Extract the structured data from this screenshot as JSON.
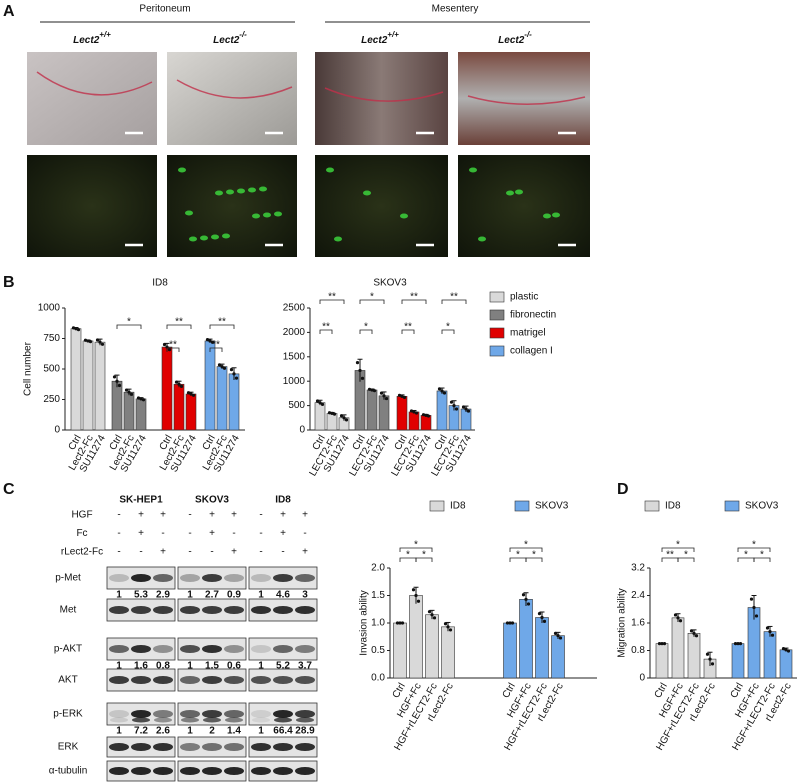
{
  "panel_labels": [
    "A",
    "B",
    "C",
    "D"
  ],
  "panel_a": {
    "sites": [
      "Peritoneum",
      "Mesentery"
    ],
    "genotypes": [
      {
        "gene": "Lect2",
        "genotype": "+/+"
      },
      {
        "gene": "Lect2",
        "genotype": "-/-"
      }
    ]
  },
  "chart_data": [
    {
      "type": "bar",
      "title": "ID8",
      "ylabel": "Cell number",
      "categories": [
        "Ctrl",
        "Lect2-Fc",
        "SU11274"
      ],
      "ylim": [
        0,
        1000
      ],
      "yticks": [
        0,
        250,
        500,
        750,
        1000
      ],
      "series": [
        {
          "color": "#d9d9d9",
          "values": [
            830,
            730,
            720
          ],
          "errors": [
            10,
            8,
            25
          ],
          "significance": []
        },
        {
          "color": "#808080",
          "values": [
            400,
            310,
            255
          ],
          "errors": [
            50,
            25,
            10
          ],
          "significance": [
            null,
            "*"
          ]
        },
        {
          "color": "#e00000",
          "values": [
            680,
            375,
            295
          ],
          "errors": [
            30,
            25,
            15
          ],
          "significance": [
            "**",
            "**"
          ]
        },
        {
          "color": "#6fa8e8",
          "values": [
            730,
            520,
            460
          ],
          "errors": [
            15,
            20,
            50
          ],
          "significance": [
            "**",
            "**"
          ]
        }
      ]
    },
    {
      "type": "bar",
      "title": "SKOV3",
      "categories": [
        "Ctrl",
        "LECT2-Fc",
        "SU11274"
      ],
      "ylim": [
        0,
        2500
      ],
      "yticks": [
        0,
        500,
        1000,
        1500,
        2000,
        2500
      ],
      "legend": "right",
      "series": [
        {
          "name": "plastic",
          "color": "#d9d9d9",
          "values": [
            560,
            340,
            250
          ],
          "errors": [
            50,
            20,
            60
          ],
          "significance": [
            "**",
            "**"
          ]
        },
        {
          "name": "fibronectin",
          "color": "#808080",
          "values": [
            1220,
            820,
            700
          ],
          "errors": [
            230,
            20,
            80
          ],
          "significance": [
            "*",
            "*"
          ]
        },
        {
          "name": "matrigel",
          "color": "#e00000",
          "values": [
            690,
            370,
            300
          ],
          "errors": [
            30,
            30,
            20
          ],
          "significance": [
            "**",
            "**"
          ]
        },
        {
          "name": "collagen I",
          "color": "#6fa8e8",
          "values": [
            800,
            500,
            430
          ],
          "errors": [
            60,
            100,
            60
          ],
          "significance": [
            "*",
            "**"
          ]
        }
      ]
    },
    {
      "type": "bar",
      "ylabel": "Invasion ability",
      "categories": [
        "Ctrl",
        "HGF+Fc",
        "HGF+rLECT2-Fc",
        "rLect2-Fc"
      ],
      "ylim": [
        0,
        2
      ],
      "yticks": [
        {
          "value": 0,
          "label": "0.0"
        },
        {
          "value": 0.5,
          "label": "0.5"
        },
        {
          "value": 1,
          "label": "1.0"
        },
        {
          "value": 1.5,
          "label": "1.5"
        },
        {
          "value": 2,
          "label": "2.0"
        }
      ],
      "legend": "top",
      "series": [
        {
          "name": "ID8",
          "color": "#d9d9d9",
          "values": [
            1.0,
            1.5,
            1.15,
            0.93
          ],
          "errors": [
            0,
            0.15,
            0.08,
            0.08
          ],
          "significance": [
            "*",
            "*",
            "*"
          ]
        },
        {
          "name": "SKOV3",
          "color": "#6fa8e8",
          "values": [
            1.0,
            1.43,
            1.1,
            0.77
          ],
          "errors": [
            0,
            0.12,
            0.1,
            0.06
          ],
          "significance": [
            "*",
            "*",
            "*"
          ]
        }
      ]
    },
    {
      "type": "bar",
      "ylabel": "Migration ability",
      "categories": [
        "Ctrl",
        "HGF+Fc",
        "HGF+rLECT2-Fc",
        "rLect2-Fc"
      ],
      "ylim": [
        0,
        3.2
      ],
      "yticks": [
        0,
        0.8,
        1.6,
        2.4,
        3.2
      ],
      "legend": "top",
      "series": [
        {
          "name": "ID8",
          "color": "#d9d9d9",
          "values": [
            1.0,
            1.75,
            1.3,
            0.55
          ],
          "errors": [
            0,
            0.12,
            0.1,
            0.2
          ],
          "significance": [
            "*",
            "**",
            "*"
          ]
        },
        {
          "name": "SKOV3",
          "color": "#6fa8e8",
          "values": [
            1.0,
            2.05,
            1.35,
            0.82
          ],
          "errors": [
            0,
            0.35,
            0.15,
            0.05
          ],
          "significance": [
            "*",
            "*",
            "*"
          ]
        }
      ]
    }
  ],
  "panel_c": {
    "cell_lines": [
      "SK-HEP1",
      "SKOV3",
      "ID8"
    ],
    "treatments": [
      {
        "name": "HGF",
        "signs": [
          "-",
          "+",
          "+"
        ]
      },
      {
        "name": "Fc",
        "signs": [
          "-",
          "+",
          "-"
        ]
      },
      {
        "name": "rLect2-Fc",
        "signs": [
          "-",
          "-",
          "+"
        ]
      }
    ],
    "blots": [
      {
        "name": "p-Met",
        "quant": [
          [
            1,
            5.3,
            2.9
          ],
          [
            1,
            2.7,
            0.9
          ],
          [
            1,
            4.6,
            3
          ]
        ]
      },
      {
        "name": "Met"
      },
      {
        "name": "p-AKT",
        "quant": [
          [
            1,
            1.6,
            0.8
          ],
          [
            1,
            1.5,
            0.6
          ],
          [
            1,
            5.2,
            3.7
          ]
        ]
      },
      {
        "name": "AKT"
      },
      {
        "name": "p-ERK",
        "quant": [
          [
            1,
            7.2,
            2.6
          ],
          [
            1,
            2,
            1.4
          ],
          [
            1,
            66.4,
            28.9
          ]
        ]
      },
      {
        "name": "ERK"
      },
      {
        "name": "α-tubulin"
      }
    ]
  }
}
